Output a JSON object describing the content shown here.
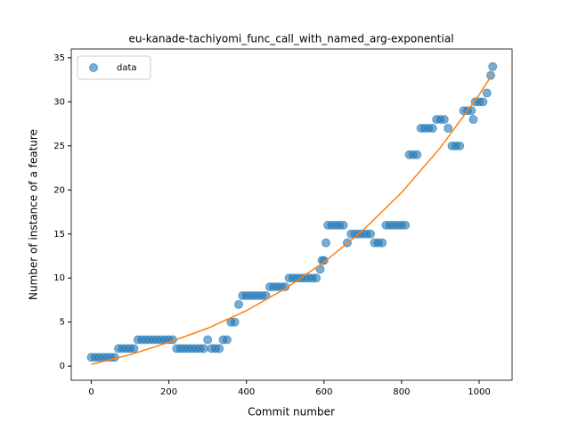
{
  "chart_data": {
    "type": "scatter",
    "title": "eu-kanade-tachiyomi_func_call_with_named_arg-exponential",
    "x_label": "Commit number",
    "y_label": "Number of instance of a feature",
    "xlim": [
      -51.7,
      1085
    ],
    "ylim": [
      -1.6,
      36
    ],
    "xticks": [
      0,
      200,
      400,
      600,
      800,
      1000
    ],
    "yticks": [
      0,
      5,
      10,
      15,
      20,
      25,
      30,
      35
    ],
    "legend": "upper left",
    "series": [
      {
        "name": "data",
        "color": "#1f77b4",
        "style": "markers",
        "x": [
          0,
          10,
          20,
          30,
          40,
          50,
          60,
          70,
          80,
          90,
          100,
          110,
          120,
          130,
          140,
          150,
          160,
          170,
          180,
          190,
          200,
          210,
          220,
          230,
          240,
          250,
          260,
          270,
          280,
          290,
          300,
          310,
          320,
          330,
          340,
          350,
          360,
          370,
          380,
          390,
          400,
          410,
          420,
          430,
          440,
          450,
          460,
          470,
          480,
          490,
          500,
          510,
          520,
          530,
          540,
          550,
          560,
          570,
          580,
          590,
          595,
          600,
          605,
          610,
          620,
          630,
          640,
          650,
          660,
          670,
          680,
          690,
          700,
          710,
          720,
          730,
          740,
          750,
          760,
          770,
          780,
          790,
          800,
          810,
          820,
          830,
          840,
          850,
          860,
          870,
          880,
          890,
          900,
          910,
          920,
          930,
          940,
          950,
          960,
          970,
          980,
          985,
          990,
          1000,
          1010,
          1020,
          1030,
          1035
        ],
        "values": [
          1,
          1,
          1,
          1,
          1,
          1,
          1,
          2,
          2,
          2,
          2,
          2,
          3,
          3,
          3,
          3,
          3,
          3,
          3,
          3,
          3,
          3,
          2,
          2,
          2,
          2,
          2,
          2,
          2,
          2,
          3,
          2,
          2,
          2,
          3,
          3,
          5,
          5,
          7,
          8,
          8,
          8,
          8,
          8,
          8,
          8,
          9,
          9,
          9,
          9,
          9,
          10,
          10,
          10,
          10,
          10,
          10,
          10,
          10,
          11,
          12,
          12,
          14,
          16,
          16,
          16,
          16,
          16,
          14,
          15,
          15,
          15,
          15,
          15,
          15,
          14,
          14,
          14,
          16,
          16,
          16,
          16,
          16,
          16,
          24,
          24,
          24,
          27,
          27,
          27,
          27,
          28,
          28,
          28,
          27,
          25,
          25,
          25,
          29,
          29,
          29,
          28,
          30,
          30,
          30,
          31,
          33,
          34
        ]
      },
      {
        "color": "#ff7f0e",
        "style": "line",
        "x": [
          0,
          100,
          200,
          300,
          400,
          500,
          600,
          700,
          800,
          900,
          1000,
          1035
        ],
        "values": [
          0.2,
          1.3,
          2.7,
          4.3,
          6.3,
          8.8,
          11.8,
          15.4,
          19.7,
          24.8,
          30.8,
          33.2
        ]
      }
    ]
  }
}
